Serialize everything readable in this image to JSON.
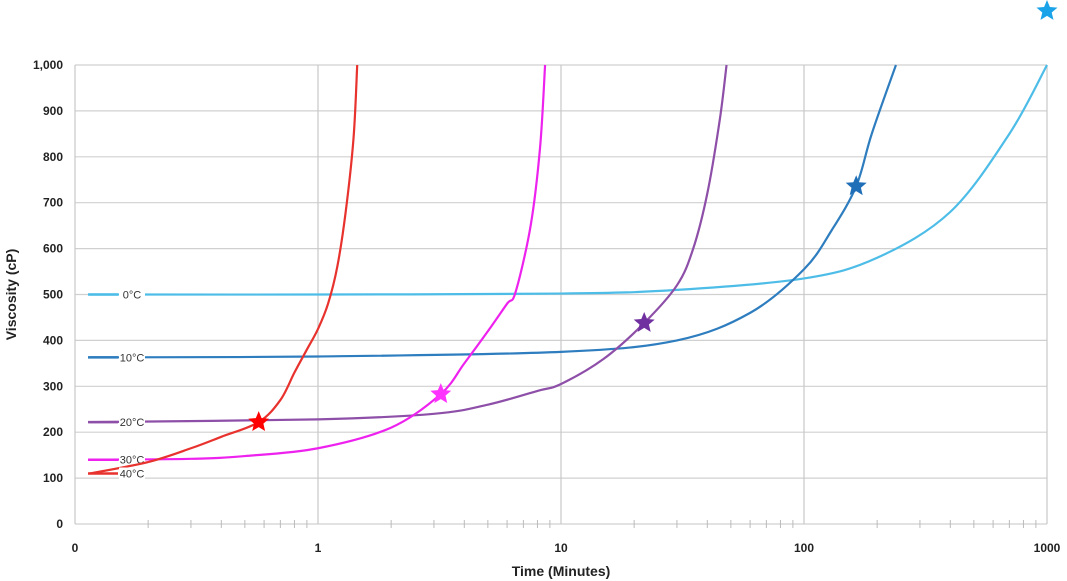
{
  "chart_data": {
    "type": "line",
    "title": "",
    "xlabel": "Time (Minutes)",
    "ylabel": "Viscosity (cP)",
    "x_scale": "log",
    "xlim": [
      0.1,
      1000
    ],
    "ylim": [
      0,
      1000
    ],
    "x_ticks": [
      {
        "value": 0.1,
        "label": "0"
      },
      {
        "value": 1,
        "label": "1"
      },
      {
        "value": 10,
        "label": "10"
      },
      {
        "value": 100,
        "label": "100"
      },
      {
        "value": 1000,
        "label": "1000"
      }
    ],
    "y_ticks": [
      {
        "value": 0,
        "label": "0"
      },
      {
        "value": 100,
        "label": "100"
      },
      {
        "value": 200,
        "label": "200"
      },
      {
        "value": 300,
        "label": "300"
      },
      {
        "value": 400,
        "label": "400"
      },
      {
        "value": 500,
        "label": "500"
      },
      {
        "value": 600,
        "label": "600"
      },
      {
        "value": 700,
        "label": "700"
      },
      {
        "value": 800,
        "label": "800"
      },
      {
        "value": 900,
        "label": "900"
      },
      {
        "value": 1000,
        "label": "1,000"
      }
    ],
    "grid": true,
    "series": [
      {
        "name": "0°C",
        "color": "#4dbde8",
        "star_color": "#1aa3e8",
        "x": [
          0.115,
          1,
          10,
          30,
          100,
          200,
          400,
          700,
          1000
        ],
        "y": [
          500,
          500,
          502,
          510,
          535,
          580,
          680,
          850,
          1000
        ],
        "marker": {
          "x": 1000,
          "y": 1120
        }
      },
      {
        "name": "10°C",
        "color": "#2e7dbf",
        "star_color": "#1f6fb8",
        "x": [
          0.115,
          1,
          10,
          30,
          60,
          100,
          130,
          164,
          190,
          239
        ],
        "y": [
          363,
          365,
          375,
          400,
          460,
          555,
          640,
          736,
          850,
          1000
        ],
        "marker": {
          "x": 164,
          "y": 736
        }
      },
      {
        "name": "20°C",
        "color": "#8e4fa8",
        "star_color": "#7030a0",
        "x": [
          0.115,
          1,
          3,
          5,
          8,
          10,
          15,
          22,
          30,
          35,
          40,
          45,
          48
        ],
        "y": [
          222,
          228,
          240,
          260,
          290,
          305,
          360,
          438,
          520,
          600,
          720,
          880,
          1000
        ],
        "marker": {
          "x": 22,
          "y": 438
        }
      },
      {
        "name": "30°C",
        "color": "#ee22ee",
        "star_color": "#ff33ff",
        "x": [
          0.115,
          0.3,
          0.5,
          1,
          2,
          3.2,
          4,
          5,
          6,
          6.5,
          7.5,
          8.2,
          8.6
        ],
        "y": [
          140,
          142,
          148,
          165,
          210,
          283,
          350,
          420,
          480,
          505,
          650,
          820,
          1000
        ],
        "marker": {
          "x": 3.2,
          "y": 283
        }
      },
      {
        "name": "40°C",
        "color": "#e8322e",
        "star_color": "#ff0000",
        "x": [
          0.115,
          0.2,
          0.3,
          0.4,
          0.57,
          0.7,
          0.8,
          0.9,
          1.0,
          1.1,
          1.2,
          1.3,
          1.4,
          1.45
        ],
        "y": [
          110,
          135,
          165,
          190,
          222,
          270,
          330,
          380,
          425,
          480,
          560,
          680,
          840,
          1000
        ],
        "marker": {
          "x": 0.57,
          "y": 222
        }
      }
    ]
  }
}
